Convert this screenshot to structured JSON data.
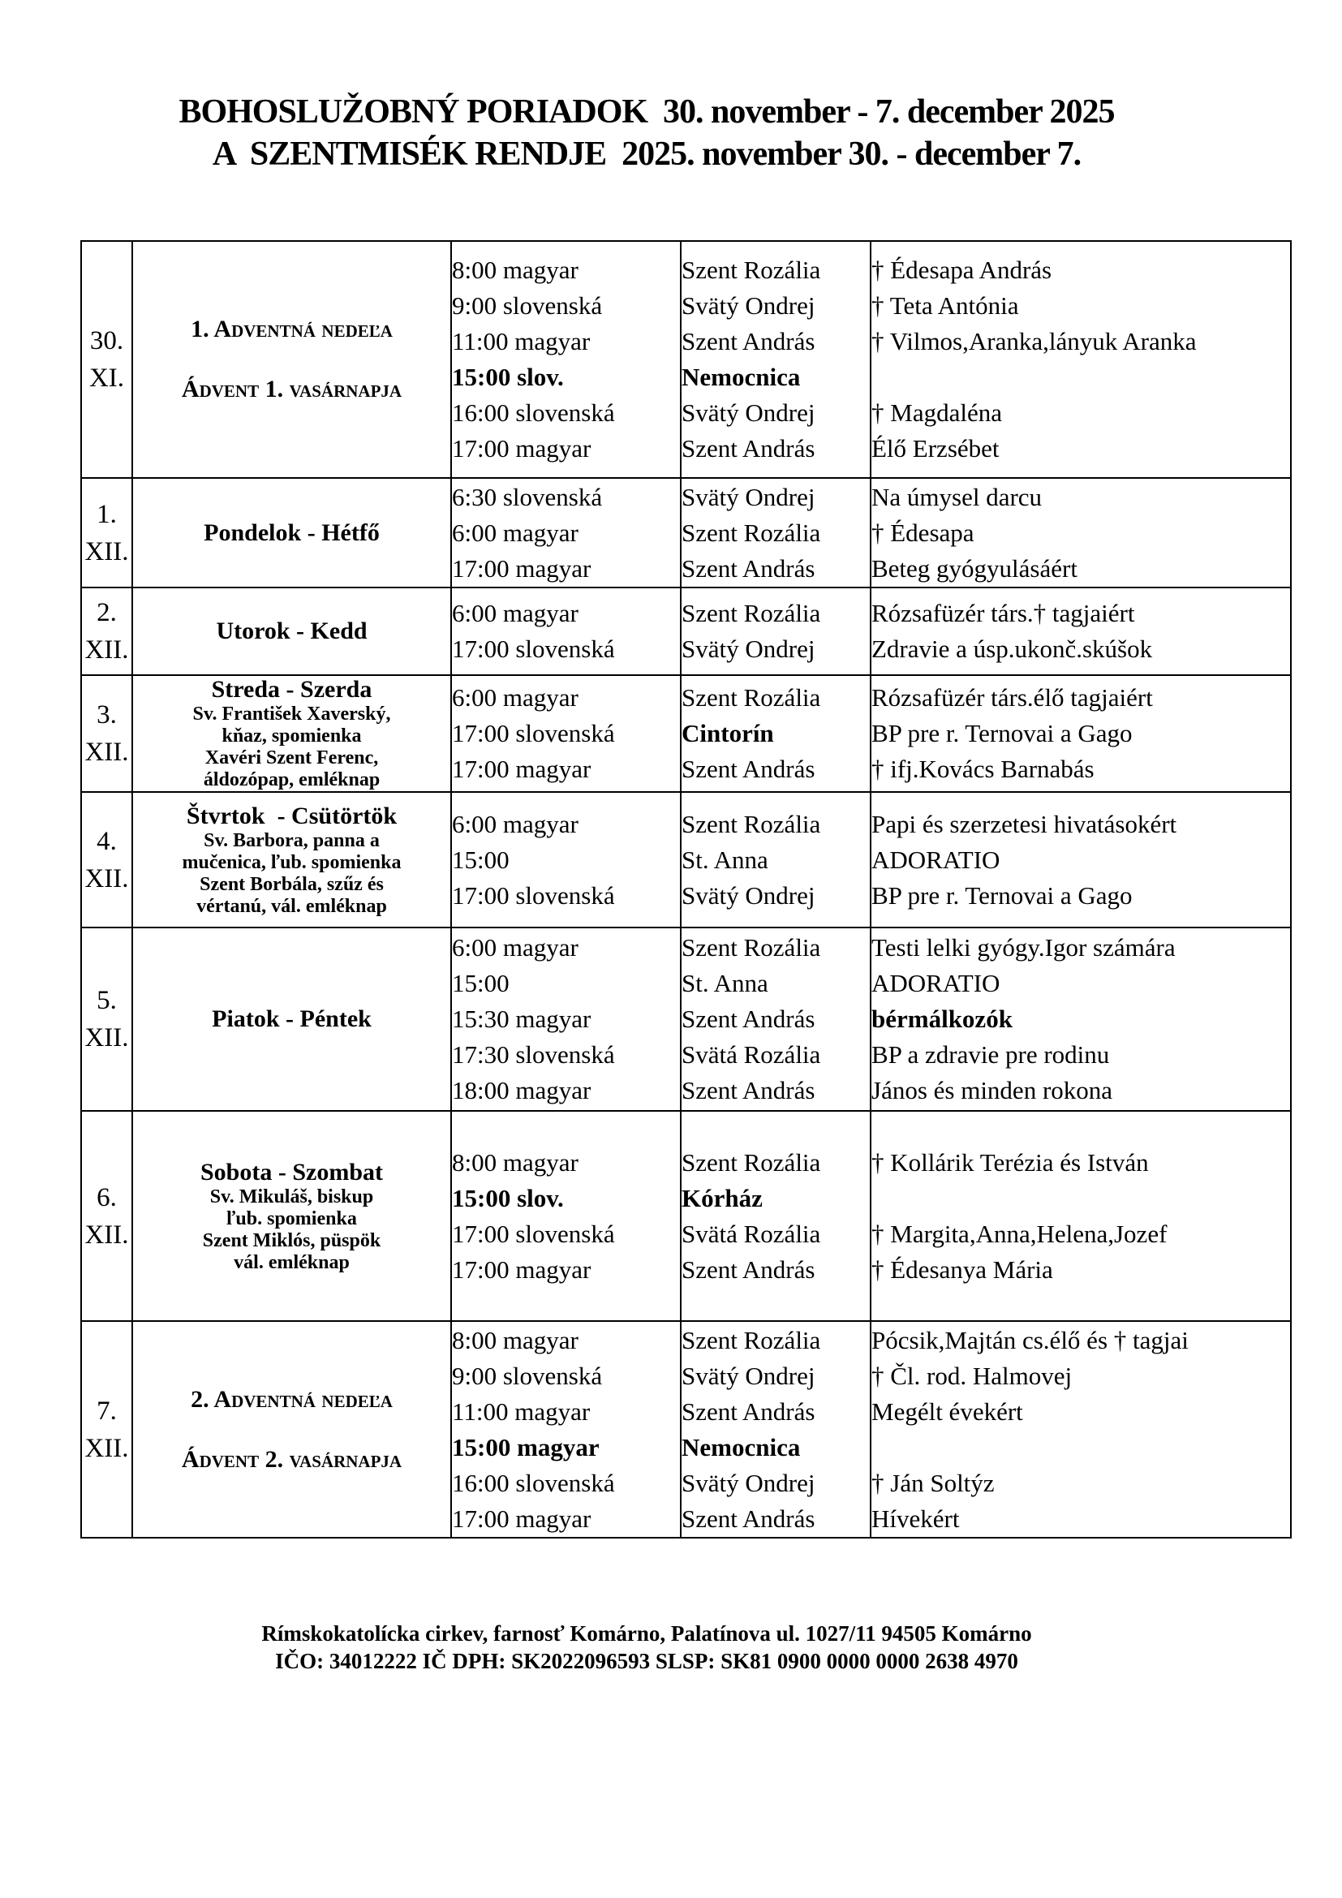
{
  "colors": {
    "text": "#000000",
    "background": "#ffffff"
  },
  "title": {
    "line1": "BOHOSLUŽOBNÝ PORIADOK  30. november - 7. december 2025",
    "line2": "A  SZENTMISÉK RENDJE  2025. november 30. - december 7."
  },
  "table": {
    "rows": [
      {
        "date": [
          "30.",
          "XI."
        ],
        "day": [
          {
            "t": "1. Adventná nedeľa",
            "cls": "caps"
          },
          {
            "t": "",
            "cls": "gap"
          },
          {
            "t": "Ádvent 1. vasárnapja",
            "cls": "caps"
          }
        ],
        "times": [
          {
            "t": "8:00 magyar"
          },
          {
            "t": "9:00 slovenská"
          },
          {
            "t": "11:00 magyar"
          },
          {
            "t": "15:00 slov.",
            "b": true
          },
          {
            "t": "16:00 slovenská"
          },
          {
            "t": "17:00 magyar"
          }
        ],
        "churches": [
          {
            "t": "Szent Rozália"
          },
          {
            "t": "Svätý Ondrej"
          },
          {
            "t": "Szent András"
          },
          {
            "t": "Nemocnica",
            "b": true
          },
          {
            "t": "Svätý Ondrej"
          },
          {
            "t": "Szent András"
          }
        ],
        "intentions": [
          {
            "t": "† Édesapa András"
          },
          {
            "t": "† Teta Antónia"
          },
          {
            "t": "† Vilmos,Aranka,lányuk Aranka"
          },
          {
            "t": ""
          },
          {
            "t": "† Magdaléna"
          },
          {
            "t": "Élő Erzsébet"
          }
        ]
      },
      {
        "date": [
          "1.",
          "XII."
        ],
        "day": [
          {
            "t": "Pondelok - Hétfő",
            "cls": "main"
          }
        ],
        "times": [
          {
            "t": "6:30 slovenská"
          },
          {
            "t": "6:00 magyar"
          },
          {
            "t": "17:00 magyar"
          }
        ],
        "churches": [
          {
            "t": "Svätý Ondrej"
          },
          {
            "t": "Szent Rozália"
          },
          {
            "t": "Szent András"
          }
        ],
        "intentions": [
          {
            "t": "Na úmysel darcu"
          },
          {
            "t": "† Édesapa"
          },
          {
            "t": "Beteg gyógyulásáért"
          }
        ]
      },
      {
        "date": [
          "2.",
          "XII."
        ],
        "day": [
          {
            "t": "Utorok - Kedd",
            "cls": "main"
          }
        ],
        "times": [
          {
            "t": "6:00 magyar"
          },
          {
            "t": "17:00 slovenská"
          }
        ],
        "churches": [
          {
            "t": "Szent Rozália"
          },
          {
            "t": "Svätý Ondrej"
          }
        ],
        "intentions": [
          {
            "t": "Rózsafüzér társ.† tagjaiért"
          },
          {
            "t": "Zdravie a úsp.ukonč.skúšok"
          }
        ]
      },
      {
        "date": [
          "3.",
          "XII."
        ],
        "day": [
          {
            "t": "Streda - Szerda",
            "cls": "main"
          },
          {
            "t": "Sv. František Xaverský,",
            "cls": "sub"
          },
          {
            "t": "kňaz, spomienka",
            "cls": "sub"
          },
          {
            "t": "Xavéri Szent Ferenc,",
            "cls": "sub"
          },
          {
            "t": "áldozópap, emléknap",
            "cls": "sub"
          }
        ],
        "times": [
          {
            "t": "6:00 magyar"
          },
          {
            "t": "17:00 slovenská"
          },
          {
            "t": "17:00 magyar"
          }
        ],
        "churches": [
          {
            "t": "Szent Rozália"
          },
          {
            "t": "Cintorín",
            "b": true
          },
          {
            "t": "Szent András"
          }
        ],
        "intentions": [
          {
            "t": "Rózsafüzér társ.élő tagjaiért"
          },
          {
            "t": "BP pre r. Ternovai a Gago"
          },
          {
            "t": "† ifj.Kovács Barnabás"
          }
        ]
      },
      {
        "date": [
          "4.",
          "XII."
        ],
        "day": [
          {
            "t": "Štvrtok  - Csütörtök",
            "cls": "main"
          },
          {
            "t": "Sv. Barbora, panna a",
            "cls": "sub"
          },
          {
            "t": "mučenica, ľub. spomienka",
            "cls": "sub"
          },
          {
            "t": "Szent Borbála, szűz és",
            "cls": "sub"
          },
          {
            "t": "vértanú, vál. emléknap",
            "cls": "sub"
          }
        ],
        "times": [
          {
            "t": "6:00 magyar"
          },
          {
            "t": "15:00"
          },
          {
            "t": "17:00 slovenská"
          }
        ],
        "churches": [
          {
            "t": "Szent Rozália"
          },
          {
            "t": "St. Anna"
          },
          {
            "t": "Svätý Ondrej"
          }
        ],
        "intentions": [
          {
            "t": "Papi és szerzetesi hivatásokért"
          },
          {
            "t": "ADORATIO"
          },
          {
            "t": "BP pre r. Ternovai a Gago"
          }
        ]
      },
      {
        "date": [
          "5.",
          "XII."
        ],
        "day": [
          {
            "t": "Piatok - Péntek",
            "cls": "main"
          }
        ],
        "times": [
          {
            "t": "6:00 magyar"
          },
          {
            "t": "15:00"
          },
          {
            "t": "15:30 magyar"
          },
          {
            "t": "17:30 slovenská"
          },
          {
            "t": "18:00 magyar"
          }
        ],
        "churches": [
          {
            "t": "Szent Rozália"
          },
          {
            "t": "St. Anna"
          },
          {
            "t": "Szent András"
          },
          {
            "t": "Svätá Rozália"
          },
          {
            "t": "Szent András"
          }
        ],
        "intentions": [
          {
            "t": "Testi lelki gyógy.Igor számára"
          },
          {
            "t": "ADORATIO"
          },
          {
            "t": "bérmálkozók",
            "b": true
          },
          {
            "t": "BP a zdravie pre rodinu"
          },
          {
            "t": "János és minden rokona"
          }
        ]
      },
      {
        "date": [
          "6.",
          "XII."
        ],
        "day": [
          {
            "t": "Sobota - Szombat",
            "cls": "main"
          },
          {
            "t": "Sv. Mikuláš, biskup",
            "cls": "sub"
          },
          {
            "t": "ľub. spomienka",
            "cls": "sub"
          },
          {
            "t": "Szent Miklós, püspök",
            "cls": "sub"
          },
          {
            "t": "vál. emléknap",
            "cls": "sub"
          }
        ],
        "times": [
          {
            "t": "8:00 magyar"
          },
          {
            "t": "15:00 slov.",
            "b": true
          },
          {
            "t": "17:00 slovenská"
          },
          {
            "t": "17:00 magyar"
          }
        ],
        "churches": [
          {
            "t": "Szent Rozália"
          },
          {
            "t": "Kórház",
            "b": true
          },
          {
            "t": "Svätá Rozália"
          },
          {
            "t": "Szent András"
          }
        ],
        "intentions": [
          {
            "t": "† Kollárik Terézia és István"
          },
          {
            "t": ""
          },
          {
            "t": "† Margita,Anna,Helena,Jozef"
          },
          {
            "t": "† Édesanya Mária"
          }
        ]
      },
      {
        "date": [
          "7.",
          "XII."
        ],
        "day": [
          {
            "t": "2. Adventná nedeľa",
            "cls": "caps"
          },
          {
            "t": "",
            "cls": "gap"
          },
          {
            "t": "Ádvent 2. vasárnapja",
            "cls": "caps"
          }
        ],
        "times": [
          {
            "t": "8:00 magyar"
          },
          {
            "t": "9:00 slovenská"
          },
          {
            "t": "11:00 magyar"
          },
          {
            "t": "15:00 magyar",
            "b": true
          },
          {
            "t": "16:00 slovenská"
          },
          {
            "t": "17:00 magyar"
          }
        ],
        "churches": [
          {
            "t": "Szent Rozália"
          },
          {
            "t": "Svätý Ondrej"
          },
          {
            "t": "Szent András"
          },
          {
            "t": "Nemocnica",
            "b": true
          },
          {
            "t": "Svätý Ondrej"
          },
          {
            "t": "Szent András"
          }
        ],
        "intentions": [
          {
            "t": "Pócsik,Majtán cs.élő és † tagjai"
          },
          {
            "t": "† Čl. rod. Halmovej"
          },
          {
            "t": "Megélt évekért"
          },
          {
            "t": ""
          },
          {
            "t": "† Ján Soltýz"
          },
          {
            "t": "Hívekért"
          }
        ]
      }
    ]
  },
  "footer": {
    "line1": "Rímskokatolícka cirkev, farnosť Komárno, Palatínova ul. 1027/11 94505 Komárno",
    "line2": "IČO: 34012222 IČ DPH: SK2022096593 SLSP: SK81 0900 0000 0000 2638 4970"
  }
}
